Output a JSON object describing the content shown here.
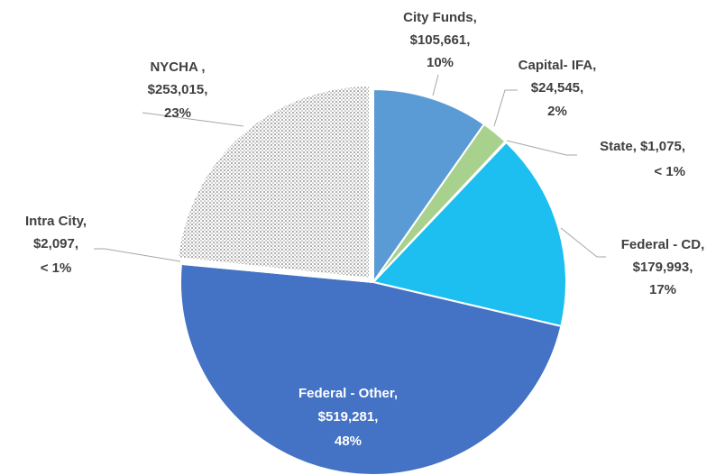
{
  "chart_data": {
    "type": "pie",
    "categories": [
      "City Funds,",
      "Capital- IFA,",
      "State,",
      "Federal - CD,",
      "Federal - Other,",
      "Intra City,",
      "NYCHA ,"
    ],
    "values": [
      105661,
      24545,
      1075,
      179993,
      519281,
      2097,
      253015
    ],
    "value_labels": [
      "$105,661,",
      "$24,545,",
      "$1,075,",
      "$179,993,",
      "$519,281,",
      "$2,097,",
      "$253,015,"
    ],
    "percent_labels": [
      "10%",
      "2%",
      "< 1%",
      "17%",
      "48%",
      "< 1%",
      "23%"
    ],
    "colors": [
      "#5b9bd5",
      "#a9d18e",
      "#70ad47",
      "#1cbfef",
      "#4472c4",
      "#ffffff",
      "#bfbfbf"
    ]
  }
}
